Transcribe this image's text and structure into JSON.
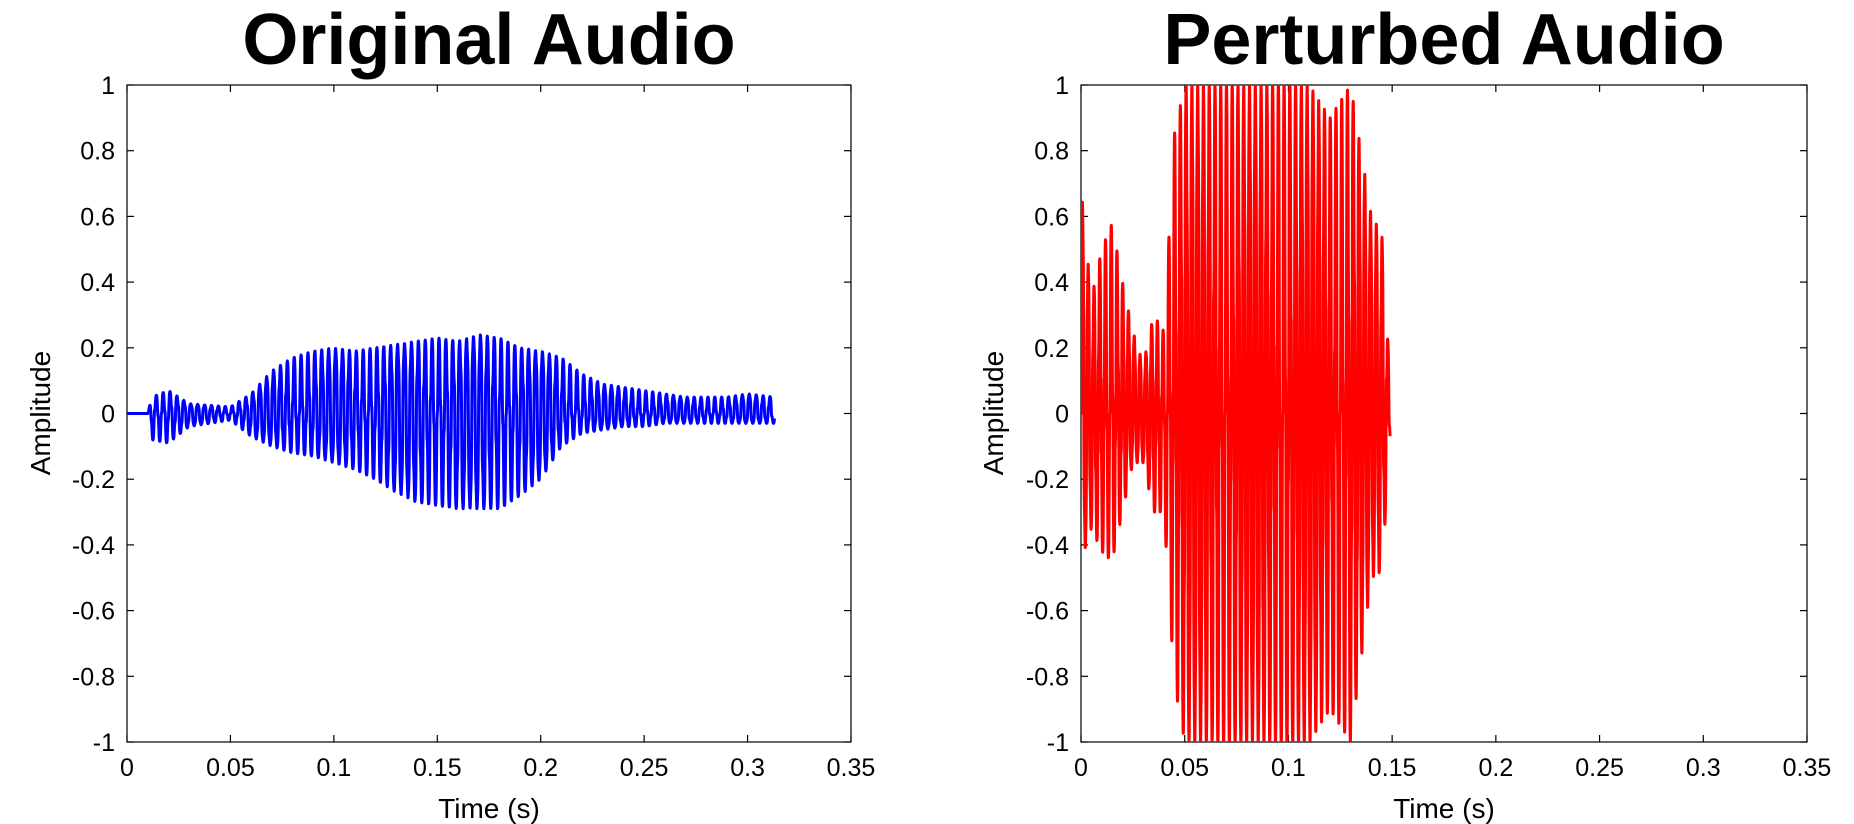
{
  "chart_data": [
    {
      "type": "line",
      "title": "Original Audio",
      "xlabel": "Time (s)",
      "ylabel": "Amplitude",
      "xlim": [
        0,
        0.35
      ],
      "ylim": [
        -1,
        1
      ],
      "x_ticks": [
        "0",
        "0.05",
        "0.1",
        "0.15",
        "0.2",
        "0.25",
        "0.3",
        "0.35"
      ],
      "y_ticks": [
        "1",
        "0.8",
        "0.6",
        "0.4",
        "0.2",
        "0",
        "-0.2",
        "-0.4",
        "-0.6",
        "-0.8",
        "-1"
      ],
      "grid": false,
      "series": [
        {
          "color": "#0000ff",
          "duration": 0.313,
          "x": [
            0,
            0.01,
            0.012,
            0.02,
            0.03,
            0.05,
            0.06,
            0.07,
            0.08,
            0.09,
            0.1,
            0.11,
            0.12,
            0.13,
            0.14,
            0.15,
            0.16,
            0.17,
            0.18,
            0.19,
            0.2,
            0.21,
            0.22,
            0.23,
            0.24,
            0.25,
            0.26,
            0.27,
            0.28,
            0.29,
            0.3,
            0.313
          ],
          "peak_pos": [
            0,
            0,
            0.05,
            0.07,
            0.03,
            0.02,
            0.06,
            0.13,
            0.17,
            0.19,
            0.2,
            0.19,
            0.2,
            0.21,
            0.22,
            0.23,
            0.22,
            0.24,
            0.23,
            0.2,
            0.19,
            0.17,
            0.12,
            0.09,
            0.08,
            0.07,
            0.06,
            0.05,
            0.05,
            0.05,
            0.06,
            0.05
          ],
          "peak_neg": [
            0,
            0,
            -0.08,
            -0.09,
            -0.04,
            -0.02,
            -0.07,
            -0.1,
            -0.12,
            -0.13,
            -0.15,
            -0.17,
            -0.2,
            -0.24,
            -0.27,
            -0.28,
            -0.29,
            -0.29,
            -0.29,
            -0.25,
            -0.2,
            -0.1,
            -0.06,
            -0.05,
            -0.04,
            -0.04,
            -0.03,
            -0.03,
            -0.03,
            -0.03,
            -0.03,
            -0.03
          ]
        }
      ]
    },
    {
      "type": "line",
      "title": "Perturbed Audio",
      "xlabel": "Time (s)",
      "ylabel": "Amplitude",
      "xlim": [
        0,
        0.35
      ],
      "ylim": [
        -1,
        1
      ],
      "x_ticks": [
        "0",
        "0.05",
        "0.1",
        "0.15",
        "0.2",
        "0.25",
        "0.3",
        "0.35"
      ],
      "y_ticks": [
        "1",
        "0.8",
        "0.6",
        "0.4",
        "0.2",
        "0",
        "-0.2",
        "-0.4",
        "-0.6",
        "-0.8",
        "-1"
      ],
      "grid": false,
      "series": [
        {
          "color": "#ff0000",
          "duration": 0.149,
          "x": [
            0,
            0.005,
            0.01,
            0.015,
            0.02,
            0.025,
            0.03,
            0.035,
            0.04,
            0.045,
            0.05,
            0.06,
            0.07,
            0.08,
            0.09,
            0.1,
            0.11,
            0.12,
            0.13,
            0.14,
            0.145,
            0.149
          ],
          "peak_pos": [
            0.69,
            0.35,
            0.5,
            0.58,
            0.4,
            0.25,
            0.15,
            0.3,
            0.25,
            0.85,
            1,
            1,
            1,
            1,
            1,
            1,
            1,
            0.9,
            1,
            0.6,
            0.55,
            0.1
          ],
          "peak_neg": [
            -0.45,
            -0.35,
            -0.42,
            -0.45,
            -0.3,
            -0.15,
            -0.15,
            -0.3,
            -0.3,
            -0.82,
            -1,
            -1,
            -1,
            -1,
            -1,
            -1,
            -1,
            -0.9,
            -1,
            -0.5,
            -0.48,
            -0.1
          ]
        }
      ]
    }
  ]
}
